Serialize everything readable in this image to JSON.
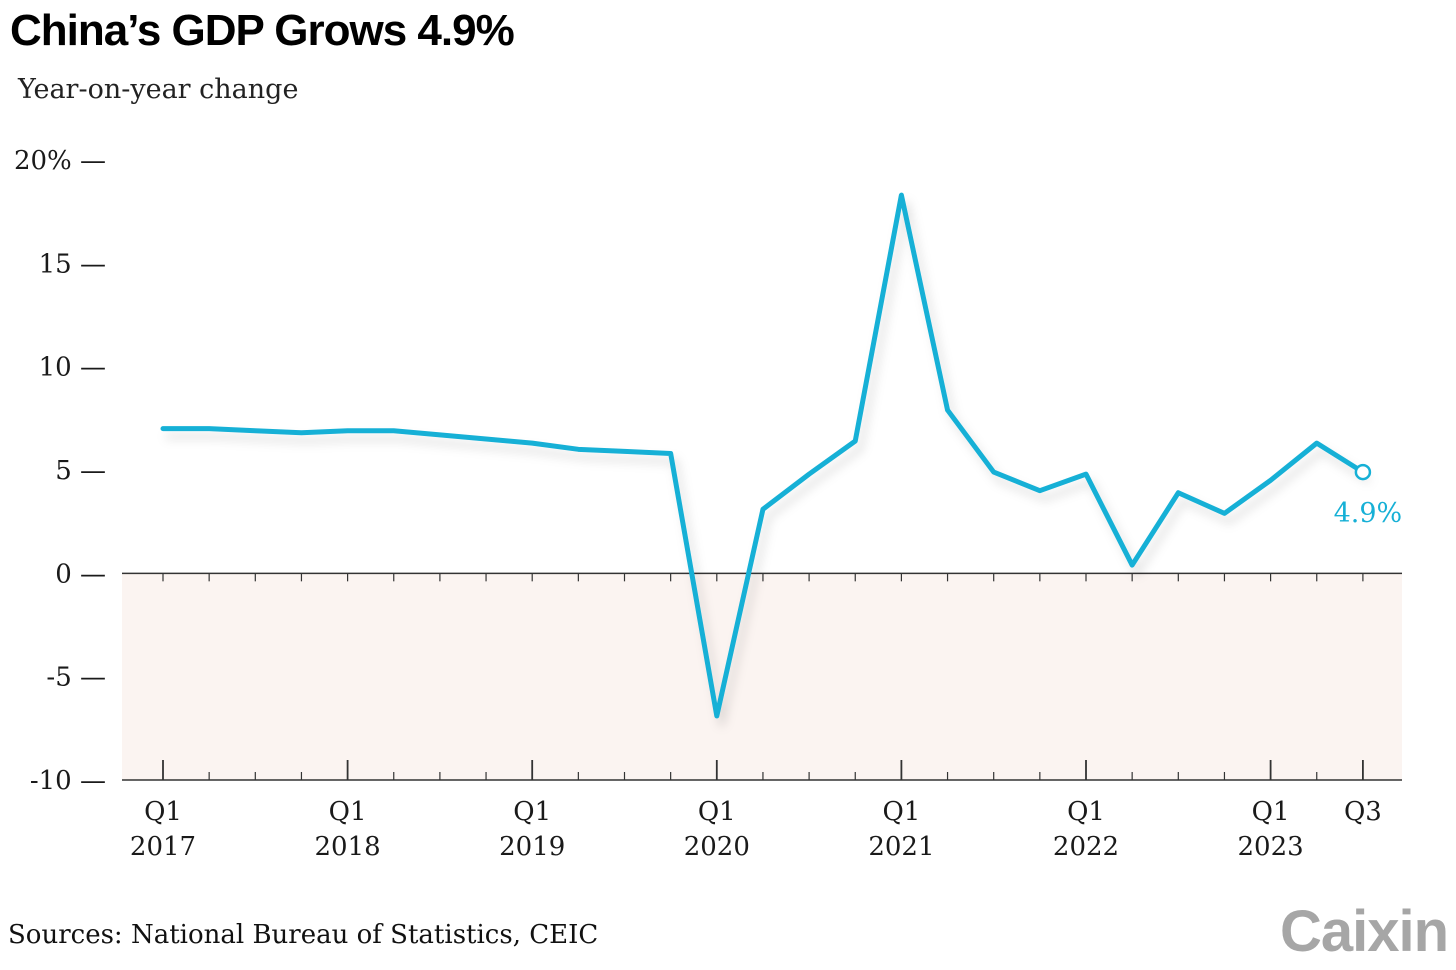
{
  "header": {
    "title": "China’s GDP Grows 4.9%",
    "subtitle": "Year-on-year change"
  },
  "footer": {
    "source": "Sources: National Bureau of Statistics, CEIC",
    "logo_text": "Caixin"
  },
  "colors": {
    "line": "#16b0d6",
    "negative_band": "#fbf4f1",
    "axis": "#333333"
  },
  "chart_data": {
    "type": "line",
    "title": "China’s GDP Grows 4.9%",
    "ylabel": "Year-on-year change",
    "xlabel": "",
    "ylim": [
      -10,
      20
    ],
    "yticks": [
      {
        "value": 20,
        "label": "20% —"
      },
      {
        "value": 15,
        "label": "15 —"
      },
      {
        "value": 10,
        "label": "10 —"
      },
      {
        "value": 5,
        "label": "5 —"
      },
      {
        "value": 0,
        "label": "0 —"
      },
      {
        "value": -5,
        "label": "-5 —"
      },
      {
        "value": -10,
        "label": "-10 —"
      }
    ],
    "x": [
      "2017 Q1",
      "2017 Q2",
      "2017 Q3",
      "2017 Q4",
      "2018 Q1",
      "2018 Q2",
      "2018 Q3",
      "2018 Q4",
      "2019 Q1",
      "2019 Q2",
      "2019 Q3",
      "2019 Q4",
      "2020 Q1",
      "2020 Q2",
      "2020 Q3",
      "2020 Q4",
      "2021 Q1",
      "2021 Q2",
      "2021 Q3",
      "2021 Q4",
      "2022 Q1",
      "2022 Q2",
      "2022 Q3",
      "2022 Q4",
      "2023 Q1",
      "2023 Q2",
      "2023 Q3"
    ],
    "series": [
      {
        "values": [
          7.0,
          7.0,
          6.9,
          6.8,
          6.9,
          6.9,
          6.7,
          6.5,
          6.3,
          6.0,
          5.9,
          5.8,
          -6.9,
          3.1,
          4.8,
          6.4,
          18.3,
          7.9,
          4.9,
          4.0,
          4.8,
          0.4,
          3.9,
          2.9,
          4.5,
          6.3,
          4.9
        ]
      }
    ],
    "xtick_labels": [
      {
        "index": 0,
        "line1": "Q1",
        "line2": "2017"
      },
      {
        "index": 4,
        "line1": "Q1",
        "line2": "2018"
      },
      {
        "index": 8,
        "line1": "Q1",
        "line2": "2019"
      },
      {
        "index": 12,
        "line1": "Q1",
        "line2": "2020"
      },
      {
        "index": 16,
        "line1": "Q1",
        "line2": "2021"
      },
      {
        "index": 20,
        "line1": "Q1",
        "line2": "2022"
      },
      {
        "index": 24,
        "line1": "Q1",
        "line2": "2023"
      },
      {
        "index": 26,
        "line1": "Q3",
        "line2": ""
      }
    ],
    "end_label": "4.9%",
    "negative_region_shaded": true,
    "grid": false
  }
}
